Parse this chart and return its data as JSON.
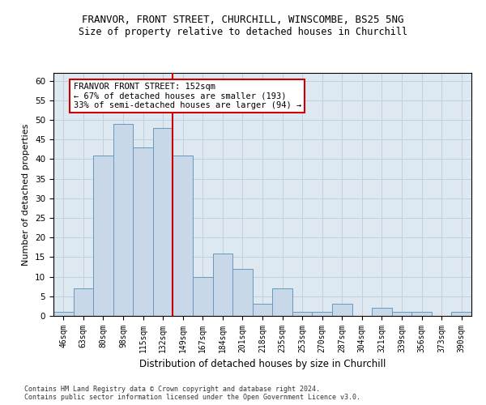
{
  "title1": "FRANVOR, FRONT STREET, CHURCHILL, WINSCOMBE, BS25 5NG",
  "title2": "Size of property relative to detached houses in Churchill",
  "xlabel": "Distribution of detached houses by size in Churchill",
  "ylabel": "Number of detached properties",
  "categories": [
    "46sqm",
    "63sqm",
    "80sqm",
    "98sqm",
    "115sqm",
    "132sqm",
    "149sqm",
    "167sqm",
    "184sqm",
    "201sqm",
    "218sqm",
    "235sqm",
    "253sqm",
    "270sqm",
    "287sqm",
    "304sqm",
    "321sqm",
    "339sqm",
    "356sqm",
    "373sqm",
    "390sqm"
  ],
  "values": [
    1,
    7,
    41,
    49,
    43,
    48,
    41,
    10,
    16,
    12,
    3,
    7,
    1,
    1,
    3,
    0,
    2,
    1,
    1,
    0,
    1
  ],
  "bar_color": "#c8d8e8",
  "bar_edge_color": "#6699bb",
  "vline_x_index": 6,
  "vline_color": "#cc0000",
  "annotation_text": "FRANVOR FRONT STREET: 152sqm\n← 67% of detached houses are smaller (193)\n33% of semi-detached houses are larger (94) →",
  "annotation_box_color": "#ffffff",
  "annotation_box_edge": "#cc0000",
  "ylim": [
    0,
    62
  ],
  "yticks": [
    0,
    5,
    10,
    15,
    20,
    25,
    30,
    35,
    40,
    45,
    50,
    55,
    60
  ],
  "background_color": "#ffffff",
  "plot_bg_color": "#dde8f0",
  "grid_color": "#c0d0e0",
  "footnote": "Contains HM Land Registry data © Crown copyright and database right 2024.\nContains public sector information licensed under the Open Government Licence v3.0."
}
